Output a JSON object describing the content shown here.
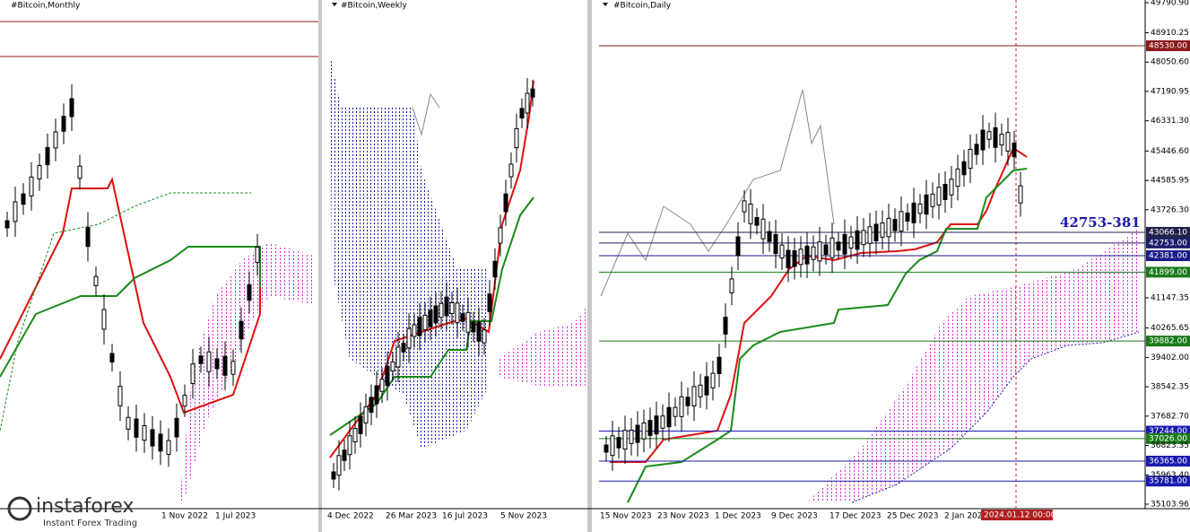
{
  "panels": [
    {
      "title": "#Bitcoin,Monthly",
      "x_labels": [
        "1 Nov 2022",
        "1 Jul 2023"
      ]
    },
    {
      "title": "#Bitcoin,Weekly",
      "x_labels": [
        "4 Dec 2022",
        "26 Mar 2023",
        "16 Jul 2023",
        "5 Nov 2023"
      ]
    },
    {
      "title": "#Bitcoin,Daily",
      "x_labels": [
        "15 Nov 2023",
        "23 Nov 2023",
        "1 Dec 2023",
        "9 Dec 2023",
        "17 Dec 2023",
        "25 Dec 2023",
        "2 Jan 202"
      ],
      "y_axis": [
        "49790.90",
        "48910.25",
        "48050.60",
        "47190.95",
        "46331.30",
        "45446.60",
        "44585.95",
        "43726.30",
        "41147.35",
        "40265.65",
        "39402.00",
        "38542.35",
        "37682.70",
        "36823.35",
        "35963.40",
        "35103.96"
      ],
      "levels": [
        {
          "label": "48530.00",
          "color": "#8b1a1a"
        },
        {
          "label": "43066.10",
          "color": "#20204a"
        },
        {
          "label": "42753.00",
          "color": "#1c1c6a"
        },
        {
          "label": "42381.00",
          "color": "#1a1a8a"
        },
        {
          "label": "41899.00",
          "color": "#1a7a1a"
        },
        {
          "label": "39882.00",
          "color": "#1a7a1a"
        },
        {
          "label": "37244.00",
          "color": "#1a1ab0"
        },
        {
          "label": "37026.00",
          "color": "#1a7a1a"
        },
        {
          "label": "36365.00",
          "color": "#1a1ab0"
        },
        {
          "label": "35781.00",
          "color": "#1a1ab0"
        }
      ],
      "cursor_time": "2024.01.12 00:00",
      "annotation": "42753-381"
    }
  ],
  "logo": {
    "name": "instaforex",
    "tagline": "Instant Forex Trading"
  }
}
